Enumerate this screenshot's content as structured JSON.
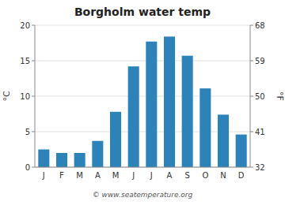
{
  "chart_data": {
    "type": "bar",
    "title": "Borgholm water temp",
    "categories": [
      "J",
      "F",
      "M",
      "A",
      "M",
      "J",
      "J",
      "A",
      "S",
      "O",
      "N",
      "D"
    ],
    "values": [
      2.5,
      2.0,
      2.0,
      3.7,
      7.8,
      14.2,
      17.7,
      18.4,
      15.7,
      11.1,
      7.4,
      4.6
    ],
    "color": "#2b83ba",
    "ylim": [
      0,
      20
    ],
    "yticks": [
      0,
      5,
      10,
      15,
      20
    ],
    "y2lim": [
      32,
      68
    ],
    "y2ticks": [
      32,
      41,
      50,
      59,
      68
    ],
    "y_label": "°C",
    "y2_label": "°F",
    "annotations": [
      "© www.seatemperature.org"
    ],
    "grid": true
  }
}
